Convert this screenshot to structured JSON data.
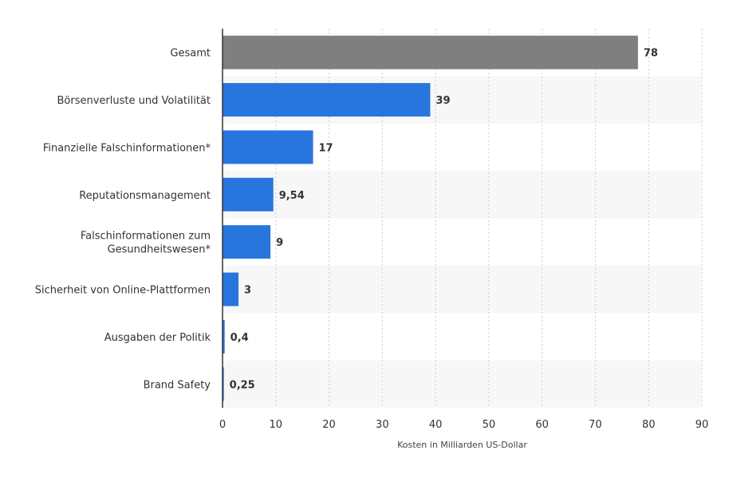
{
  "chart_data": {
    "type": "bar",
    "orientation": "horizontal",
    "categories": [
      "Gesamt",
      "Börsenverluste und Volatilität",
      "Finanzielle Falschinformationen*",
      "Reputationsmanagement",
      "Falschinformationen zum Gesundheitswesen*",
      "Sicherheit von Online-Plattformen",
      "Ausgaben der Politik",
      "Brand Safety"
    ],
    "category_lines": [
      [
        "Gesamt"
      ],
      [
        "Börsenverluste und Volatilität"
      ],
      [
        "Finanzielle Falschinformationen*"
      ],
      [
        "Reputationsmanagement"
      ],
      [
        "Falschinformationen zum",
        "Gesundheitswesen*"
      ],
      [
        "Sicherheit von Online-Plattformen"
      ],
      [
        "Ausgaben der Politik"
      ],
      [
        "Brand Safety"
      ]
    ],
    "values": [
      78,
      39,
      17,
      9.54,
      9,
      3,
      0.4,
      0.25
    ],
    "value_labels": [
      "78",
      "39",
      "17",
      "9,54",
      "9",
      "3",
      "0,4",
      "0,25"
    ],
    "bar_colors": [
      "#7f7f7f",
      "#2876dd",
      "#2876dd",
      "#2876dd",
      "#2876dd",
      "#2876dd",
      "#2876dd",
      "#2876dd"
    ],
    "xlim": [
      0,
      90
    ],
    "xticks": [
      0,
      10,
      20,
      30,
      40,
      50,
      60,
      70,
      80,
      90
    ],
    "xlabel": "Kosten in Milliarden US-Dollar",
    "grid": true,
    "band_color": "#f7f7f7",
    "grid_color": "#cccccc"
  }
}
